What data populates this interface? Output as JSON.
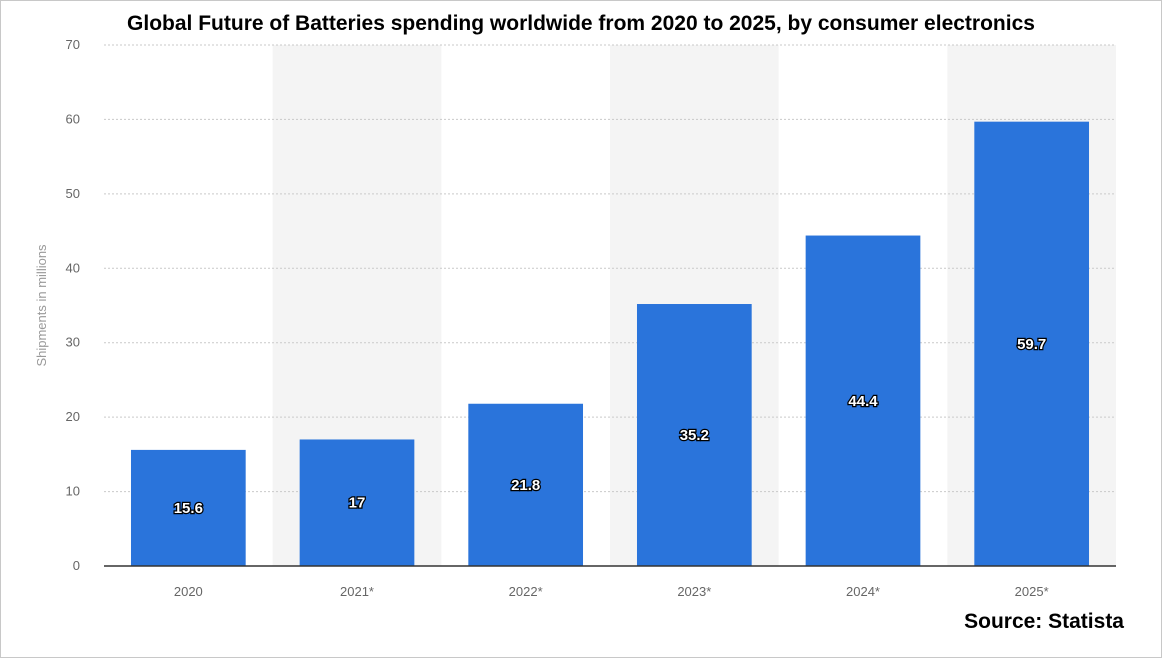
{
  "chart_data": {
    "type": "bar",
    "title": "Global Future of Batteries spending worldwide from 2020 to 2025, by consumer electronics",
    "ylabel": "Shipments in millions",
    "xlabel": "",
    "categories": [
      "2020",
      "2021*",
      "2022*",
      "2023*",
      "2024*",
      "2025*"
    ],
    "values": [
      15.6,
      17,
      21.8,
      35.2,
      44.4,
      59.7
    ],
    "value_labels": [
      "15.6",
      "17",
      "21.8",
      "35.2",
      "44.4",
      "59.7"
    ],
    "ylim": [
      0,
      70
    ],
    "yticks": [
      0,
      10,
      20,
      30,
      40,
      50,
      60,
      70
    ],
    "grid": true,
    "bar_color": "#2a74db",
    "band_color": "#f4f4f4"
  },
  "source": "Source: Statista"
}
